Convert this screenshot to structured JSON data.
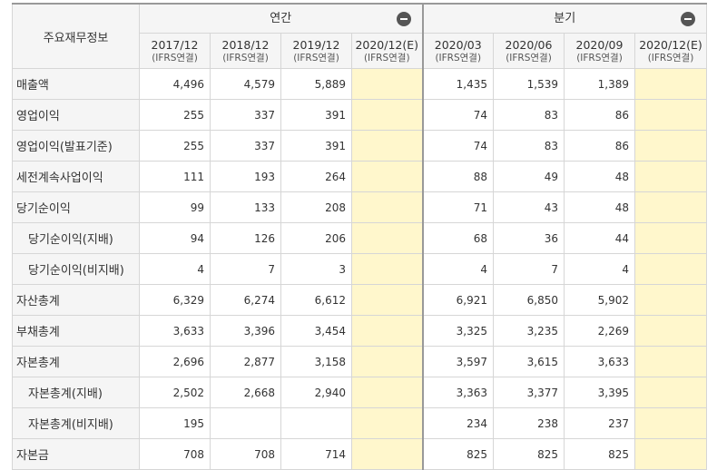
{
  "header": {
    "corner_label": "주요재무정보",
    "annual_label": "연간",
    "quarterly_label": "분기",
    "annual_periods": [
      {
        "date": "2017/12",
        "sub": "(IFRS연결)"
      },
      {
        "date": "2018/12",
        "sub": "(IFRS연결)"
      },
      {
        "date": "2019/12",
        "sub": "(IFRS연결)"
      },
      {
        "date": "2020/12(E)",
        "sub": "(IFRS연결)"
      }
    ],
    "quarterly_periods": [
      {
        "date": "2020/03",
        "sub": "(IFRS연결)"
      },
      {
        "date": "2020/06",
        "sub": "(IFRS연결)"
      },
      {
        "date": "2020/09",
        "sub": "(IFRS연결)"
      },
      {
        "date": "2020/12(E)",
        "sub": "(IFRS연결)"
      }
    ]
  },
  "rows": [
    {
      "label": "매출액",
      "annual": [
        "4,496",
        "4,579",
        "5,889",
        ""
      ],
      "quarterly": [
        "1,435",
        "1,539",
        "1,389",
        ""
      ]
    },
    {
      "label": "영업이익",
      "annual": [
        "255",
        "337",
        "391",
        ""
      ],
      "quarterly": [
        "74",
        "83",
        "86",
        ""
      ]
    },
    {
      "label": "영업이익(발표기준)",
      "annual": [
        "255",
        "337",
        "391",
        ""
      ],
      "quarterly": [
        "74",
        "83",
        "86",
        ""
      ]
    },
    {
      "label": "세전계속사업이익",
      "annual": [
        "111",
        "193",
        "264",
        ""
      ],
      "quarterly": [
        "88",
        "49",
        "48",
        ""
      ]
    },
    {
      "label": "당기순이익",
      "annual": [
        "99",
        "133",
        "208",
        ""
      ],
      "quarterly": [
        "71",
        "43",
        "48",
        ""
      ]
    },
    {
      "label": "당기순이익(지배)",
      "annual": [
        "94",
        "126",
        "206",
        ""
      ],
      "quarterly": [
        "68",
        "36",
        "44",
        ""
      ]
    },
    {
      "label": "당기순이익(비지배)",
      "annual": [
        "4",
        "7",
        "3",
        ""
      ],
      "quarterly": [
        "4",
        "7",
        "4",
        ""
      ]
    },
    {
      "label": "자산총계",
      "annual": [
        "6,329",
        "6,274",
        "6,612",
        ""
      ],
      "quarterly": [
        "6,921",
        "6,850",
        "5,902",
        ""
      ]
    },
    {
      "label": "부채총계",
      "annual": [
        "3,633",
        "3,396",
        "3,454",
        ""
      ],
      "quarterly": [
        "3,325",
        "3,235",
        "2,269",
        ""
      ]
    },
    {
      "label": "자본총계",
      "annual": [
        "2,696",
        "2,877",
        "3,158",
        ""
      ],
      "quarterly": [
        "3,597",
        "3,615",
        "3,633",
        ""
      ]
    },
    {
      "label": "자본총계(지배)",
      "annual": [
        "2,502",
        "2,668",
        "2,940",
        ""
      ],
      "quarterly": [
        "3,363",
        "3,377",
        "3,395",
        ""
      ]
    },
    {
      "label": "자본총계(비지배)",
      "annual": [
        "195",
        "",
        "",
        ""
      ],
      "quarterly": [
        "234",
        "238",
        "237",
        ""
      ]
    },
    {
      "label": "자본금",
      "annual": [
        "708",
        "708",
        "714",
        ""
      ],
      "quarterly": [
        "825",
        "825",
        "825",
        ""
      ]
    }
  ],
  "colors": {
    "estimate_bg": "#fff7cc",
    "header_bg": "#f5f5f5",
    "border": "#d6d6d6"
  }
}
